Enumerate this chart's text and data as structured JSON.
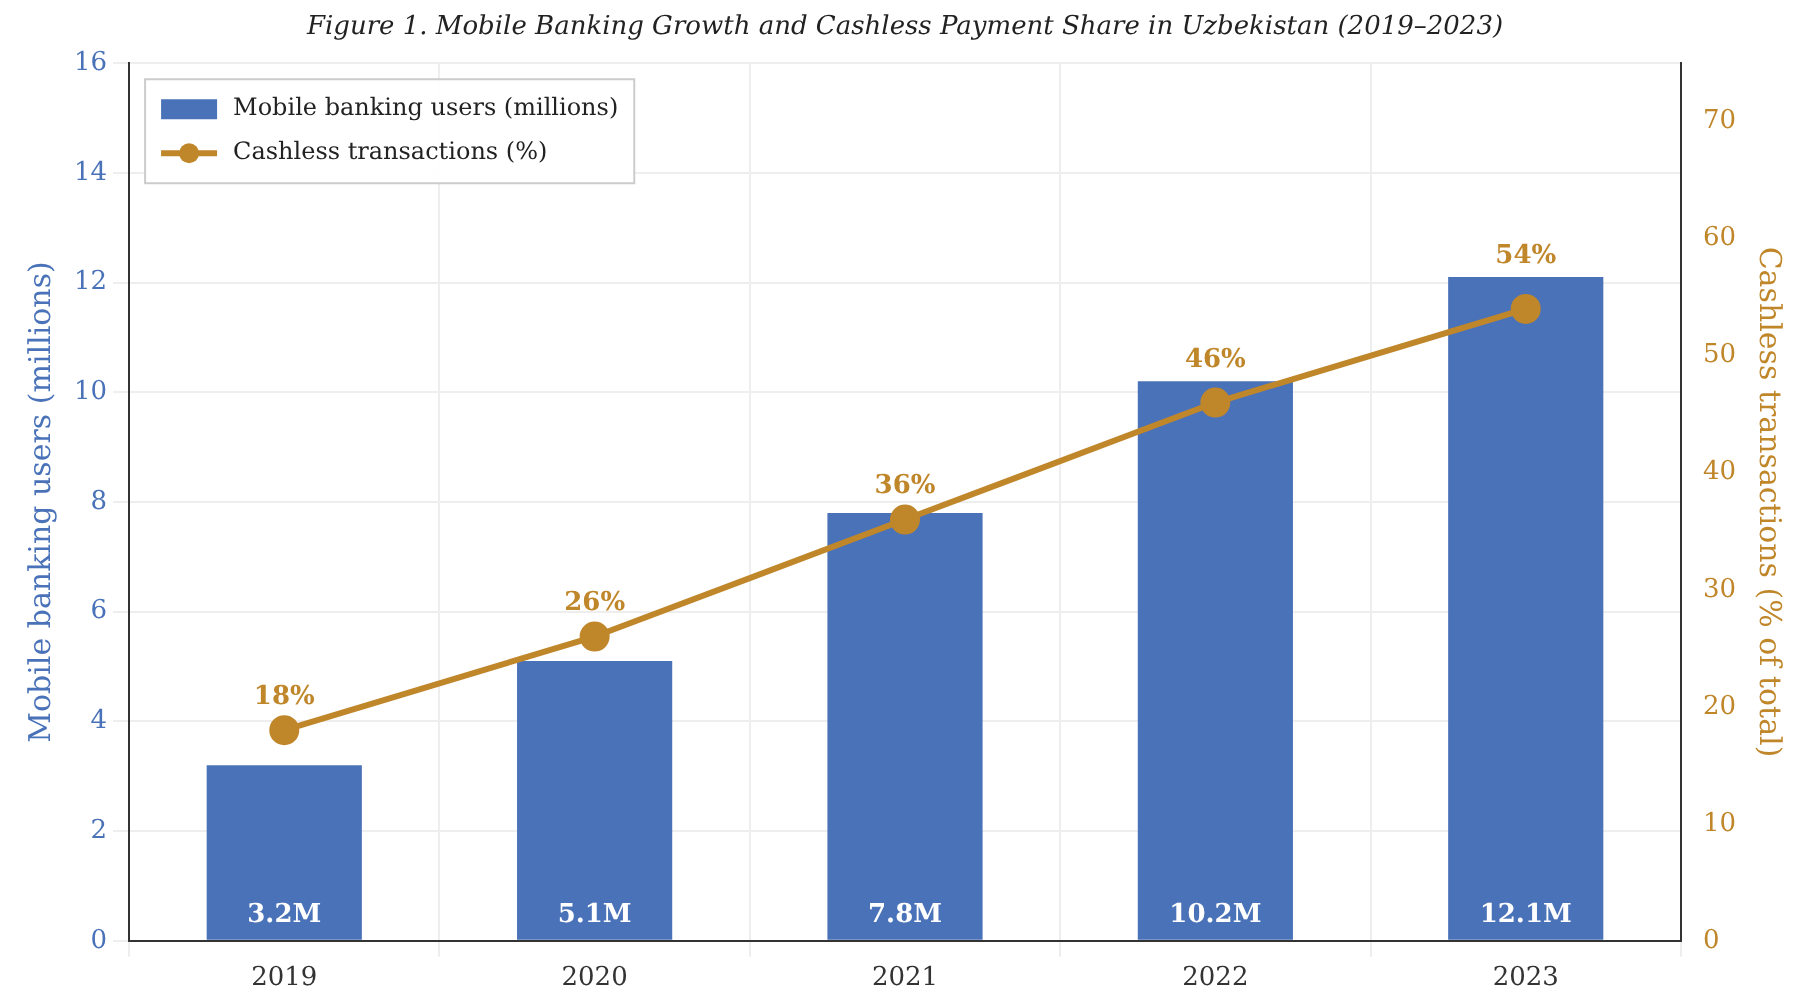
{
  "chart_data": {
    "type": "bar",
    "title": "Figure 1. Mobile Banking Growth and Cashless Payment Share in Uzbekistan (2019–2023)",
    "ylabel": "Mobile banking users (millions)",
    "y2label": "Cashless transactions (% of total)",
    "categories": [
      "2019",
      "2020",
      "2021",
      "2022",
      "2023"
    ],
    "series": [
      {
        "name": "Mobile banking users (millions)",
        "color": "#4a72b8",
        "values": [
          3.2,
          5.1,
          7.8,
          10.2,
          12.1
        ],
        "value_labels": [
          "3.2M",
          "5.1M",
          "7.8M",
          "10.2M",
          "12.1M"
        ]
      },
      {
        "name": "Cashless transactions (%)",
        "type": "line",
        "axis": "y2",
        "color": "#c0862a",
        "marker": "circle",
        "values": [
          18,
          26,
          36,
          46,
          54
        ],
        "value_labels": [
          "18%",
          "26%",
          "36%",
          "46%",
          "54%"
        ]
      }
    ],
    "ylim": [
      0,
      16
    ],
    "yticks": [
      0,
      2,
      4,
      6,
      8,
      10,
      12,
      14,
      16
    ],
    "y2lim": [
      0,
      75
    ],
    "y2ticks": [
      0,
      10,
      20,
      30,
      40,
      50,
      60,
      70
    ],
    "grid": true,
    "legend": "top left"
  }
}
